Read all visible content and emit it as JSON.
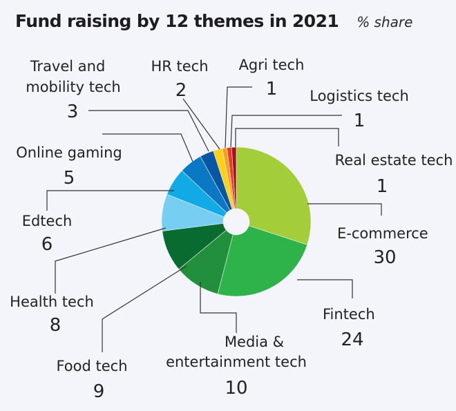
{
  "chart_data": {
    "type": "pie",
    "title": "Fund raising by 12 themes in 2021",
    "subtitle": "% share",
    "unit": "% share",
    "donut": true,
    "slices": [
      {
        "label": "E-commerce",
        "value": 30,
        "color": "#a4cd3a"
      },
      {
        "label": "Fintech",
        "value": 24,
        "color": "#2db34a"
      },
      {
        "label": "Media & entertainment tech",
        "value": 10,
        "color": "#228f3d"
      },
      {
        "label": "Food tech",
        "value": 9,
        "color": "#0a6b30"
      },
      {
        "label": "Health tech",
        "value": 8,
        "color": "#76cff3"
      },
      {
        "label": "Edtech",
        "value": 6,
        "color": "#11a9e6"
      },
      {
        "label": "Online gaming",
        "value": 5,
        "color": "#0a78c4"
      },
      {
        "label": "Travel and mobility tech",
        "value": 3,
        "color": "#0756a3"
      },
      {
        "label": "HR tech",
        "value": 2,
        "color": "#fdd01c"
      },
      {
        "label": "Agri tech",
        "value": 1,
        "color": "#f5a11f"
      },
      {
        "label": "Logistics tech",
        "value": 1,
        "color": "#ec3a25"
      },
      {
        "label": "Real estate tech",
        "value": 1,
        "color": "#a3131c"
      }
    ]
  }
}
